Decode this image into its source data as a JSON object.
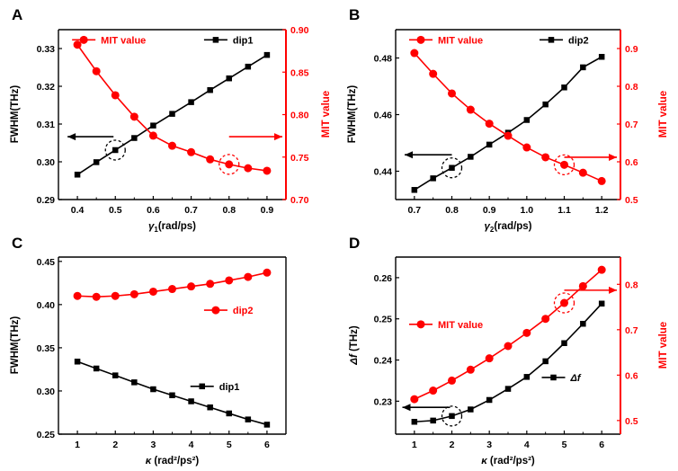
{
  "chart_data": [
    {
      "id": "A",
      "panel_label": "A",
      "type": "line",
      "xlabel": "γ1(rad/ps)",
      "xlabel_main": "γ",
      "xlabel_sub": "1",
      "xlabel_rest": "(rad/ps)",
      "xlim": [
        0.35,
        0.95
      ],
      "xticks": [
        0.4,
        0.5,
        0.6,
        0.7,
        0.8,
        0.9
      ],
      "xtick_labels": [
        "0.4",
        "0.5",
        "0.6",
        "0.7",
        "0.8",
        "0.9"
      ],
      "y_left": {
        "label": "FWHM(THz)",
        "lim": [
          0.29,
          0.335
        ],
        "ticks": [
          0.29,
          0.3,
          0.31,
          0.32,
          0.33
        ],
        "tick_labels": [
          "0.29",
          "0.30",
          "0.31",
          "0.32",
          "0.33"
        ]
      },
      "y_right": {
        "label": "MIT value",
        "lim": [
          0.7,
          0.9
        ],
        "ticks": [
          0.7,
          0.75,
          0.8,
          0.85,
          0.9
        ],
        "tick_labels": [
          "0.70",
          "0.75",
          "0.80",
          "0.85",
          "0.90"
        ]
      },
      "series": [
        {
          "name": "dip1",
          "axis": "left",
          "color": "#000000",
          "marker": "square",
          "x": [
            0.4,
            0.45,
            0.5,
            0.55,
            0.6,
            0.65,
            0.7,
            0.75,
            0.8,
            0.85,
            0.9
          ],
          "y": [
            0.2966,
            0.2999,
            0.3031,
            0.3063,
            0.3096,
            0.3127,
            0.3158,
            0.319,
            0.3221,
            0.3252,
            0.3283
          ]
        },
        {
          "name": "MIT value",
          "axis": "right",
          "color": "#ff0000",
          "marker": "circle",
          "x": [
            0.4,
            0.45,
            0.5,
            0.55,
            0.6,
            0.65,
            0.7,
            0.75,
            0.8,
            0.85,
            0.9
          ],
          "y": [
            0.8823,
            0.8511,
            0.8228,
            0.7975,
            0.7752,
            0.7633,
            0.7558,
            0.7473,
            0.7414,
            0.7369,
            0.7339
          ]
        }
      ],
      "legend": [
        {
          "label": "MIT value",
          "color": "#ff0000",
          "marker": "circle",
          "pos": "top-left"
        },
        {
          "label": "dip1",
          "color": "#000000",
          "marker": "square",
          "pos": "top-right"
        }
      ]
    },
    {
      "id": "B",
      "panel_label": "B",
      "type": "line",
      "xlabel": "γ2(rad/ps)",
      "xlabel_main": "γ",
      "xlabel_sub": "2",
      "xlabel_rest": "(rad/ps)",
      "xlim": [
        0.65,
        1.25
      ],
      "xticks": [
        0.7,
        0.8,
        0.9,
        1.0,
        1.1,
        1.2
      ],
      "xtick_labels": [
        "0.7",
        "0.8",
        "0.9",
        "1.0",
        "1.1",
        "1.2"
      ],
      "y_left": {
        "label": "FWHM(THz)",
        "lim": [
          0.43,
          0.49
        ],
        "ticks": [
          0.44,
          0.46,
          0.48
        ],
        "tick_labels": [
          "0.44",
          "0.46",
          "0.48"
        ]
      },
      "y_right": {
        "label": "MIT value",
        "lim": [
          0.5,
          0.95
        ],
        "ticks": [
          0.5,
          0.6,
          0.7,
          0.8,
          0.9
        ],
        "tick_labels": [
          "0.5",
          "0.6",
          "0.7",
          "0.8",
          "0.9"
        ]
      },
      "series": [
        {
          "name": "dip2",
          "axis": "left",
          "color": "#000000",
          "marker": "square",
          "x": [
            0.7,
            0.75,
            0.8,
            0.85,
            0.9,
            0.95,
            1.0,
            1.05,
            1.1,
            1.15,
            1.2
          ],
          "y": [
            0.4334,
            0.4375,
            0.4412,
            0.4451,
            0.4494,
            0.4536,
            0.4581,
            0.4636,
            0.4696,
            0.4767,
            0.4804
          ]
        },
        {
          "name": "MIT value",
          "axis": "right",
          "color": "#ff0000",
          "marker": "circle",
          "x": [
            0.7,
            0.75,
            0.8,
            0.85,
            0.9,
            0.95,
            1.0,
            1.05,
            1.1,
            1.15,
            1.2
          ],
          "y": [
            0.888,
            0.833,
            0.781,
            0.738,
            0.701,
            0.669,
            0.638,
            0.612,
            0.592,
            0.571,
            0.549
          ]
        }
      ],
      "legend": [
        {
          "label": "MIT value",
          "color": "#ff0000",
          "marker": "circle",
          "pos": "top-left"
        },
        {
          "label": "dip2",
          "color": "#000000",
          "marker": "square",
          "pos": "top-right"
        }
      ]
    },
    {
      "id": "C",
      "panel_label": "C",
      "type": "line",
      "xlabel": "κ (rad2/ps2)",
      "xlabel_main": "κ",
      "xlabel_rest": " (rad²/ps²)",
      "xlim": [
        0.5,
        6.5
      ],
      "xticks": [
        1,
        2,
        3,
        4,
        5,
        6
      ],
      "xtick_labels": [
        "1",
        "2",
        "3",
        "4",
        "5",
        "6"
      ],
      "y_left": {
        "label": "FWHM(THz)",
        "lim": [
          0.25,
          0.455
        ],
        "ticks": [
          0.25,
          0.3,
          0.35,
          0.4,
          0.45
        ],
        "tick_labels": [
          "0.25",
          "0.30",
          "0.35",
          "0.40",
          "0.45"
        ]
      },
      "series": [
        {
          "name": "dip2",
          "axis": "left",
          "color": "#ff0000",
          "marker": "circle",
          "x": [
            1,
            1.5,
            2,
            2.5,
            3,
            3.5,
            4,
            4.5,
            5,
            5.5,
            6
          ],
          "y": [
            0.41,
            0.409,
            0.41,
            0.412,
            0.415,
            0.418,
            0.421,
            0.424,
            0.428,
            0.432,
            0.437
          ]
        },
        {
          "name": "dip1",
          "axis": "left",
          "color": "#000000",
          "marker": "square",
          "x": [
            1,
            1.5,
            2,
            2.5,
            3,
            3.5,
            4,
            4.5,
            5,
            5.5,
            6
          ],
          "y": [
            0.334,
            0.326,
            0.318,
            0.31,
            0.302,
            0.295,
            0.288,
            0.281,
            0.274,
            0.267,
            0.261
          ]
        }
      ],
      "legend": [
        {
          "label": "dip2",
          "color": "#ff0000",
          "marker": "circle",
          "pos": "upper-right"
        },
        {
          "label": "dip1",
          "color": "#000000",
          "marker": "square",
          "pos": "lower-right"
        }
      ]
    },
    {
      "id": "D",
      "panel_label": "D",
      "type": "line",
      "xlabel": "κ (rad2/ps2)",
      "xlabel_main": "κ",
      "xlabel_rest": " (rad²/ps²)",
      "xlim": [
        0.5,
        6.5
      ],
      "xticks": [
        1,
        2,
        3,
        4,
        5,
        6
      ],
      "xtick_labels": [
        "1",
        "2",
        "3",
        "4",
        "5",
        "6"
      ],
      "y_left": {
        "label": "Δf (THz)",
        "label_italic": "Δf",
        "label_rest": " (THz)",
        "lim": [
          0.222,
          0.265
        ],
        "ticks": [
          0.23,
          0.24,
          0.25,
          0.26
        ],
        "tick_labels": [
          "0.23",
          "0.24",
          "0.25",
          "0.26"
        ]
      },
      "y_right": {
        "label": "MIT value",
        "lim": [
          0.47,
          0.86
        ],
        "ticks": [
          0.5,
          0.6,
          0.7,
          0.8
        ],
        "tick_labels": [
          "0.5",
          "0.6",
          "0.7",
          "0.8"
        ]
      },
      "series": [
        {
          "name": "MIT value",
          "axis": "right",
          "color": "#ff0000",
          "marker": "circle",
          "x": [
            1,
            1.5,
            2,
            2.5,
            3,
            3.5,
            4,
            4.5,
            5,
            5.5,
            6
          ],
          "y": [
            0.547,
            0.566,
            0.588,
            0.612,
            0.637,
            0.664,
            0.693,
            0.724,
            0.759,
            0.796,
            0.832
          ]
        },
        {
          "name": "Δf",
          "axis": "left",
          "color": "#000000",
          "marker": "square",
          "x": [
            1,
            1.5,
            2,
            2.5,
            3,
            3.5,
            4,
            4.5,
            5,
            5.5,
            6
          ],
          "y": [
            0.225,
            0.2253,
            0.2264,
            0.228,
            0.2303,
            0.233,
            0.2359,
            0.2397,
            0.2441,
            0.2488,
            0.2537
          ]
        }
      ],
      "legend": [
        {
          "label": "MIT value",
          "color": "#ff0000",
          "marker": "circle",
          "pos": "middle-left"
        },
        {
          "label": "Δf",
          "color": "#000000",
          "marker": "square",
          "pos": "middle-right",
          "italic": true
        }
      ]
    }
  ]
}
